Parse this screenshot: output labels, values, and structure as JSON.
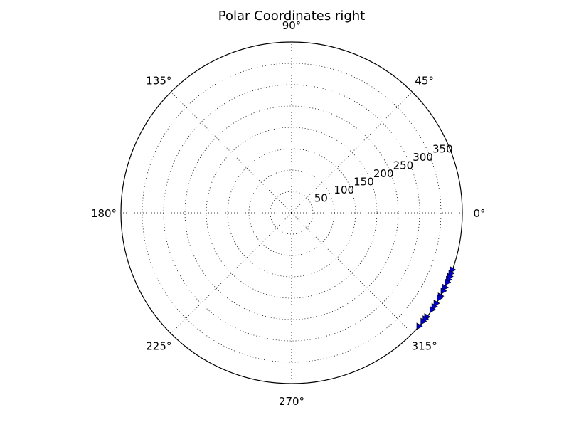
{
  "chart_data": {
    "type": "scatter",
    "projection": "polar",
    "title": "Polar Coordinates right",
    "r_ticks": [
      50,
      100,
      150,
      200,
      250,
      300,
      350
    ],
    "r_max": 400,
    "theta_ticks": [
      0,
      45,
      90,
      135,
      180,
      225,
      270,
      315
    ],
    "theta_tick_labels": [
      "0°",
      "45°",
      "90°",
      "135°",
      "180°",
      "225°",
      "270°",
      "315°"
    ],
    "grid": true,
    "marker": "triangle-right",
    "marker_color": "#0000cc",
    "series": [
      {
        "theta_deg": [
          -19.5,
          -20.7,
          -21.9,
          -23.0,
          -24.0,
          -25.9,
          -27.2,
          -29.2,
          -29.9,
          -32.0,
          -33.3,
          -34.5,
          -37.5,
          -38.4,
          -39.5,
          -41.6
        ],
        "r": [
          400,
          400,
          400,
          400,
          400,
          400,
          400,
          400,
          400,
          400,
          400,
          400,
          400,
          400,
          400,
          400
        ]
      }
    ]
  }
}
